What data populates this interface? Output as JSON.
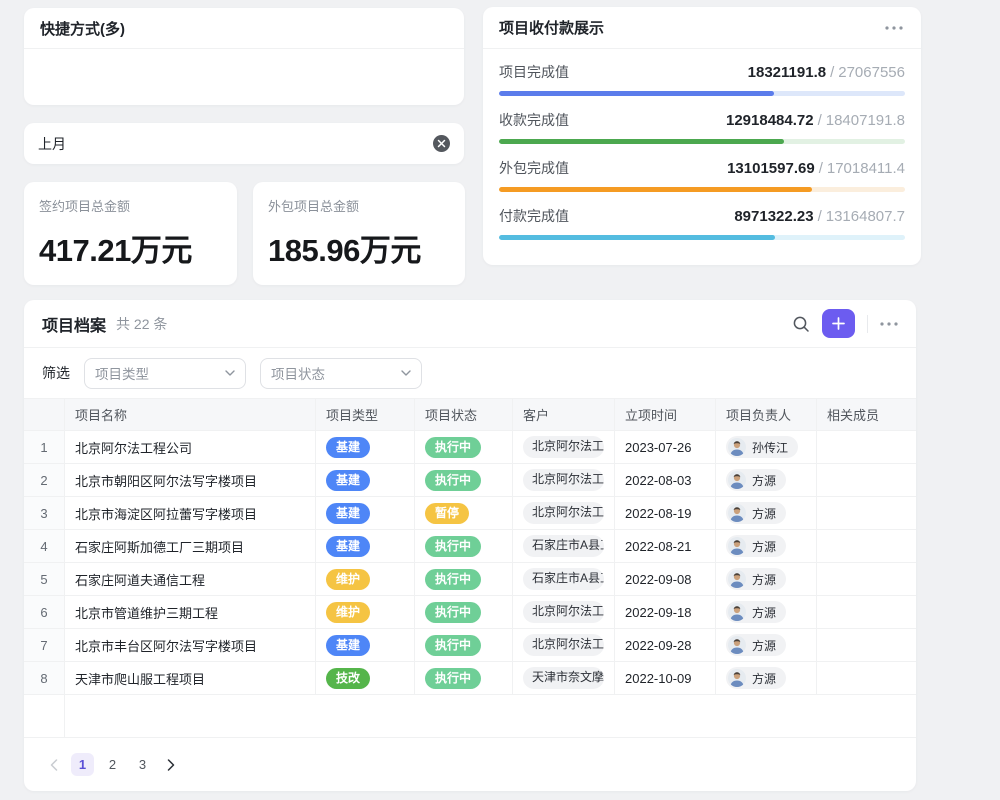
{
  "shortcut_card": {
    "title": "快捷方式(多)"
  },
  "quick_filter": {
    "text": "上月"
  },
  "stat_cards": [
    {
      "label": "签约项目总金额",
      "value": "417.21万元"
    },
    {
      "label": "外包项目总金额",
      "value": "185.96万元"
    }
  ],
  "payments_card": {
    "title": "项目收付款展示",
    "separator": "/",
    "rows": [
      {
        "label": "项目完成值",
        "value": "18321191.8",
        "total": "27067556",
        "pct": 67.7,
        "color": "#5B7CEB",
        "track": "#DDE7FA"
      },
      {
        "label": "收款完成值",
        "value": "12918484.72",
        "total": "18407191.8",
        "pct": 70.2,
        "color": "#4CA84F",
        "track": "#E2F1E3"
      },
      {
        "label": "外包完成值",
        "value": "13101597.69",
        "total": "17018411.4",
        "pct": 77.0,
        "color": "#F59B23",
        "track": "#FBEEDD"
      },
      {
        "label": "付款完成值",
        "value": "8971322.23",
        "total": "13164807.7",
        "pct": 68.1,
        "color": "#54BCE0",
        "track": "#DFF2FA"
      }
    ]
  },
  "archive_card": {
    "title": "项目档案",
    "count": "共 22 条",
    "filter_label": "筛选",
    "selects": [
      {
        "placeholder": "项目类型"
      },
      {
        "placeholder": "项目状态"
      }
    ],
    "columns": [
      "",
      "项目名称",
      "项目类型",
      "项目状态",
      "客户",
      "立项时间",
      "项目负责人",
      "相关成员"
    ],
    "type_colors": {
      "基建": "#4E86F7",
      "维护": "#F5C443",
      "技改": "#55B54B"
    },
    "status_colors": {
      "执行中": "#6FCF97",
      "暂停": "#F5C443"
    },
    "rows": [
      {
        "idx": "1",
        "name": "北京阿尔法工程公司",
        "type": "基建",
        "status": "执行中",
        "customer": "北京阿尔法工程公司",
        "date": "2023-07-26",
        "owner": "孙传江"
      },
      {
        "idx": "2",
        "name": "北京市朝阳区阿尔法写字楼项目",
        "type": "基建",
        "status": "执行中",
        "customer": "北京阿尔法工程公司",
        "date": "2022-08-03",
        "owner": "方源"
      },
      {
        "idx": "3",
        "name": "北京市海淀区阿拉蕾写字楼项目",
        "type": "基建",
        "status": "暂停",
        "customer": "北京阿尔法工程公司",
        "date": "2022-08-19",
        "owner": "方源"
      },
      {
        "idx": "4",
        "name": "石家庄阿斯加德工厂三期项目",
        "type": "基建",
        "status": "执行中",
        "customer": "石家庄市A县工厂",
        "date": "2022-08-21",
        "owner": "方源"
      },
      {
        "idx": "5",
        "name": "石家庄阿道夫通信工程",
        "type": "维护",
        "status": "执行中",
        "customer": "石家庄市A县工厂",
        "date": "2022-09-08",
        "owner": "方源"
      },
      {
        "idx": "6",
        "name": "北京市管道维护三期工程",
        "type": "维护",
        "status": "执行中",
        "customer": "北京阿尔法工程公司",
        "date": "2022-09-18",
        "owner": "方源"
      },
      {
        "idx": "7",
        "name": "北京市丰台区阿尔法写字楼项目",
        "type": "基建",
        "status": "执行中",
        "customer": "北京阿尔法工程公司",
        "date": "2022-09-28",
        "owner": "方源"
      },
      {
        "idx": "8",
        "name": "天津市爬山服工程项目",
        "type": "技改",
        "status": "执行中",
        "customer": "天津市奈文摩尔",
        "date": "2022-10-09",
        "owner": "方源"
      }
    ],
    "pagination": {
      "pages": [
        "1",
        "2",
        "3"
      ],
      "active": "1"
    }
  },
  "icons": {
    "clear": "x-circle",
    "more": "ellipsis",
    "search": "magnifier",
    "add": "plus",
    "select_arrow": "chevron-down",
    "prev": "chevron-left",
    "next": "chevron-right"
  }
}
